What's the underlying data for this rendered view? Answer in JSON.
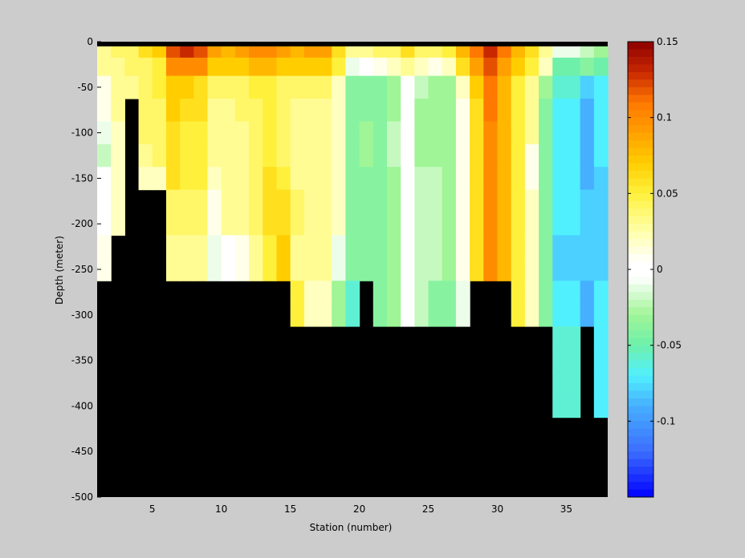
{
  "chart_data": {
    "type": "heatmap",
    "xlabel": "Station (number)",
    "ylabel": "Depth (meter)",
    "xlim": [
      1,
      38
    ],
    "ylim": [
      -500,
      0
    ],
    "x_ticks": [
      5,
      10,
      15,
      20,
      25,
      30,
      35
    ],
    "y_ticks": [
      0,
      -50,
      -100,
      -150,
      -200,
      -250,
      -300,
      -350,
      -400,
      -450,
      -500
    ],
    "colorbar": {
      "range": [
        -0.15,
        0.15
      ],
      "ticks": [
        0.15,
        0.1,
        0.05,
        0,
        -0.05,
        -0.1
      ],
      "tick_labels": [
        "0.15",
        "0.1",
        "0.05",
        "0",
        "-0.05",
        "-0.1"
      ]
    },
    "colors": {
      "land": "#000000",
      "surface_band": "#000000"
    },
    "depth_levels": [
      -10,
      -25,
      -50,
      -75,
      -100,
      -125,
      -150,
      -175,
      -200,
      -225,
      -250,
      -275,
      -300,
      -325,
      -350,
      -375,
      -400
    ],
    "stations": [
      1,
      2,
      3,
      4,
      5,
      6,
      7,
      8,
      9,
      10,
      11,
      12,
      13,
      14,
      15,
      16,
      17,
      18,
      19,
      20,
      21,
      22,
      23,
      24,
      25,
      26,
      27,
      28,
      29,
      30,
      31,
      32,
      33,
      34,
      35,
      36,
      37
    ],
    "values": [
      [
        0.03,
        0.04,
        0.04,
        0.06,
        0.07,
        0.12,
        0.13,
        0.12,
        0.09,
        0.08,
        0.09,
        0.1,
        0.1,
        0.09,
        0.08,
        0.09,
        0.09,
        0.06,
        0.03,
        0.03,
        0.04,
        0.04,
        0.06,
        0.04,
        0.04,
        0.05,
        0.08,
        0.11,
        0.13,
        0.11,
        0.08,
        0.06,
        0.03,
        -0.01,
        -0.01,
        -0.02,
        -0.03
      ],
      [
        0.03,
        0.03,
        0.04,
        0.04,
        0.05,
        0.1,
        0.1,
        0.1,
        0.07,
        0.07,
        0.07,
        0.08,
        0.08,
        0.07,
        0.07,
        0.07,
        0.07,
        0.05,
        -0.01,
        0.0,
        0.01,
        0.02,
        0.03,
        0.02,
        0.01,
        0.02,
        0.06,
        0.09,
        0.12,
        0.09,
        0.07,
        0.05,
        0.02,
        -0.05,
        -0.05,
        -0.04,
        -0.05
      ],
      [
        0.01,
        0.03,
        0.03,
        0.04,
        0.05,
        0.07,
        0.07,
        0.06,
        0.04,
        0.04,
        0.04,
        0.05,
        0.05,
        0.04,
        0.04,
        0.04,
        0.04,
        0.02,
        -0.04,
        -0.04,
        -0.04,
        -0.03,
        0.0,
        -0.02,
        -0.03,
        -0.03,
        0.02,
        0.07,
        0.11,
        0.08,
        0.05,
        0.03,
        -0.03,
        -0.06,
        -0.06,
        -0.08,
        -0.07
      ],
      [
        0.01,
        0.03,
        null,
        0.04,
        0.04,
        0.07,
        0.06,
        0.06,
        0.03,
        0.03,
        0.04,
        0.04,
        0.05,
        0.04,
        0.03,
        0.03,
        0.03,
        0.02,
        -0.04,
        -0.04,
        -0.04,
        -0.03,
        0.0,
        -0.03,
        -0.03,
        -0.03,
        0.01,
        0.06,
        0.11,
        0.08,
        0.05,
        0.03,
        -0.04,
        -0.07,
        -0.07,
        -0.09,
        -0.07
      ],
      [
        -0.01,
        0.02,
        null,
        0.04,
        0.04,
        0.06,
        0.05,
        0.05,
        0.03,
        0.03,
        0.03,
        0.04,
        0.05,
        0.04,
        0.03,
        0.03,
        0.03,
        0.02,
        -0.04,
        -0.03,
        -0.04,
        -0.02,
        0.0,
        -0.03,
        -0.03,
        -0.03,
        0.01,
        0.06,
        0.1,
        0.08,
        0.05,
        0.03,
        -0.04,
        -0.07,
        -0.07,
        -0.09,
        -0.07
      ],
      [
        -0.02,
        0.02,
        null,
        0.03,
        0.04,
        0.06,
        0.05,
        0.05,
        0.03,
        0.03,
        0.03,
        0.04,
        0.05,
        0.04,
        0.03,
        0.03,
        0.03,
        0.02,
        -0.04,
        -0.03,
        -0.04,
        -0.02,
        0.0,
        -0.03,
        -0.03,
        -0.03,
        0.01,
        0.06,
        0.1,
        0.08,
        0.05,
        0.01,
        -0.04,
        -0.07,
        -0.07,
        -0.09,
        -0.07
      ],
      [
        0.0,
        0.02,
        null,
        0.02,
        0.02,
        0.06,
        0.05,
        0.05,
        0.02,
        0.03,
        0.03,
        0.04,
        0.06,
        0.05,
        0.03,
        0.03,
        0.03,
        0.02,
        -0.04,
        -0.04,
        -0.04,
        -0.03,
        0.0,
        -0.02,
        -0.02,
        -0.03,
        0.01,
        0.06,
        0.1,
        0.08,
        0.05,
        0.01,
        -0.04,
        -0.07,
        -0.07,
        -0.09,
        -0.08
      ],
      [
        0.0,
        0.02,
        null,
        null,
        null,
        0.04,
        0.04,
        0.04,
        0.01,
        0.03,
        0.03,
        0.04,
        0.06,
        0.06,
        0.04,
        0.03,
        0.03,
        0.02,
        -0.04,
        -0.04,
        -0.04,
        -0.03,
        0.0,
        -0.02,
        -0.02,
        -0.03,
        0.01,
        0.06,
        0.1,
        0.08,
        0.05,
        0.02,
        -0.04,
        -0.07,
        -0.07,
        -0.08,
        -0.08
      ],
      [
        0.0,
        0.02,
        null,
        null,
        null,
        0.04,
        0.04,
        0.04,
        0.01,
        0.03,
        0.03,
        0.04,
        0.06,
        0.06,
        0.04,
        0.03,
        0.03,
        0.02,
        -0.04,
        -0.04,
        -0.04,
        -0.03,
        0.0,
        -0.02,
        -0.02,
        -0.03,
        0.01,
        0.06,
        0.1,
        0.08,
        0.05,
        0.02,
        -0.04,
        -0.07,
        -0.07,
        -0.08,
        -0.08
      ],
      [
        0.01,
        null,
        null,
        null,
        null,
        0.03,
        0.03,
        0.03,
        -0.01,
        0.0,
        0.01,
        0.03,
        0.05,
        0.07,
        0.03,
        0.03,
        0.03,
        -0.01,
        -0.04,
        -0.04,
        -0.04,
        -0.03,
        0.0,
        -0.02,
        -0.02,
        -0.03,
        0.01,
        0.06,
        0.1,
        0.08,
        0.05,
        0.02,
        -0.04,
        -0.08,
        -0.08,
        -0.08,
        -0.08
      ],
      [
        0.01,
        null,
        null,
        null,
        null,
        0.03,
        0.03,
        0.03,
        -0.01,
        0.0,
        0.01,
        0.03,
        0.05,
        0.07,
        0.03,
        0.03,
        0.03,
        -0.01,
        -0.04,
        -0.04,
        -0.04,
        -0.03,
        0.0,
        -0.02,
        -0.02,
        -0.03,
        0.01,
        0.06,
        0.1,
        0.08,
        0.05,
        0.02,
        -0.04,
        -0.08,
        -0.08,
        -0.08,
        -0.08
      ],
      [
        null,
        null,
        null,
        null,
        null,
        null,
        null,
        null,
        null,
        null,
        null,
        null,
        null,
        null,
        0.05,
        0.02,
        0.02,
        -0.03,
        -0.06,
        null,
        -0.04,
        -0.03,
        0.0,
        -0.02,
        -0.04,
        -0.04,
        -0.01,
        null,
        null,
        null,
        0.05,
        0.02,
        -0.04,
        -0.07,
        -0.07,
        -0.09,
        -0.07
      ],
      [
        null,
        null,
        null,
        null,
        null,
        null,
        null,
        null,
        null,
        null,
        null,
        null,
        null,
        null,
        0.05,
        0.02,
        0.02,
        -0.03,
        -0.06,
        null,
        -0.04,
        -0.03,
        0.0,
        -0.02,
        -0.04,
        -0.04,
        -0.01,
        null,
        null,
        null,
        0.05,
        0.02,
        -0.04,
        -0.07,
        -0.07,
        -0.09,
        -0.07
      ],
      [
        null,
        null,
        null,
        null,
        null,
        null,
        null,
        null,
        null,
        null,
        null,
        null,
        null,
        null,
        null,
        null,
        null,
        null,
        null,
        null,
        null,
        null,
        null,
        null,
        null,
        null,
        null,
        null,
        null,
        null,
        null,
        null,
        null,
        -0.06,
        -0.06,
        null,
        -0.07
      ],
      [
        null,
        null,
        null,
        null,
        null,
        null,
        null,
        null,
        null,
        null,
        null,
        null,
        null,
        null,
        null,
        null,
        null,
        null,
        null,
        null,
        null,
        null,
        null,
        null,
        null,
        null,
        null,
        null,
        null,
        null,
        null,
        null,
        null,
        -0.06,
        -0.06,
        null,
        -0.07
      ],
      [
        null,
        null,
        null,
        null,
        null,
        null,
        null,
        null,
        null,
        null,
        null,
        null,
        null,
        null,
        null,
        null,
        null,
        null,
        null,
        null,
        null,
        null,
        null,
        null,
        null,
        null,
        null,
        null,
        null,
        null,
        null,
        null,
        null,
        -0.06,
        -0.06,
        null,
        -0.07
      ],
      [
        null,
        null,
        null,
        null,
        null,
        null,
        null,
        null,
        null,
        null,
        null,
        null,
        null,
        null,
        null,
        null,
        null,
        null,
        null,
        null,
        null,
        null,
        null,
        null,
        null,
        null,
        null,
        null,
        null,
        null,
        null,
        null,
        null,
        -0.06,
        -0.06,
        null,
        -0.07
      ]
    ]
  }
}
